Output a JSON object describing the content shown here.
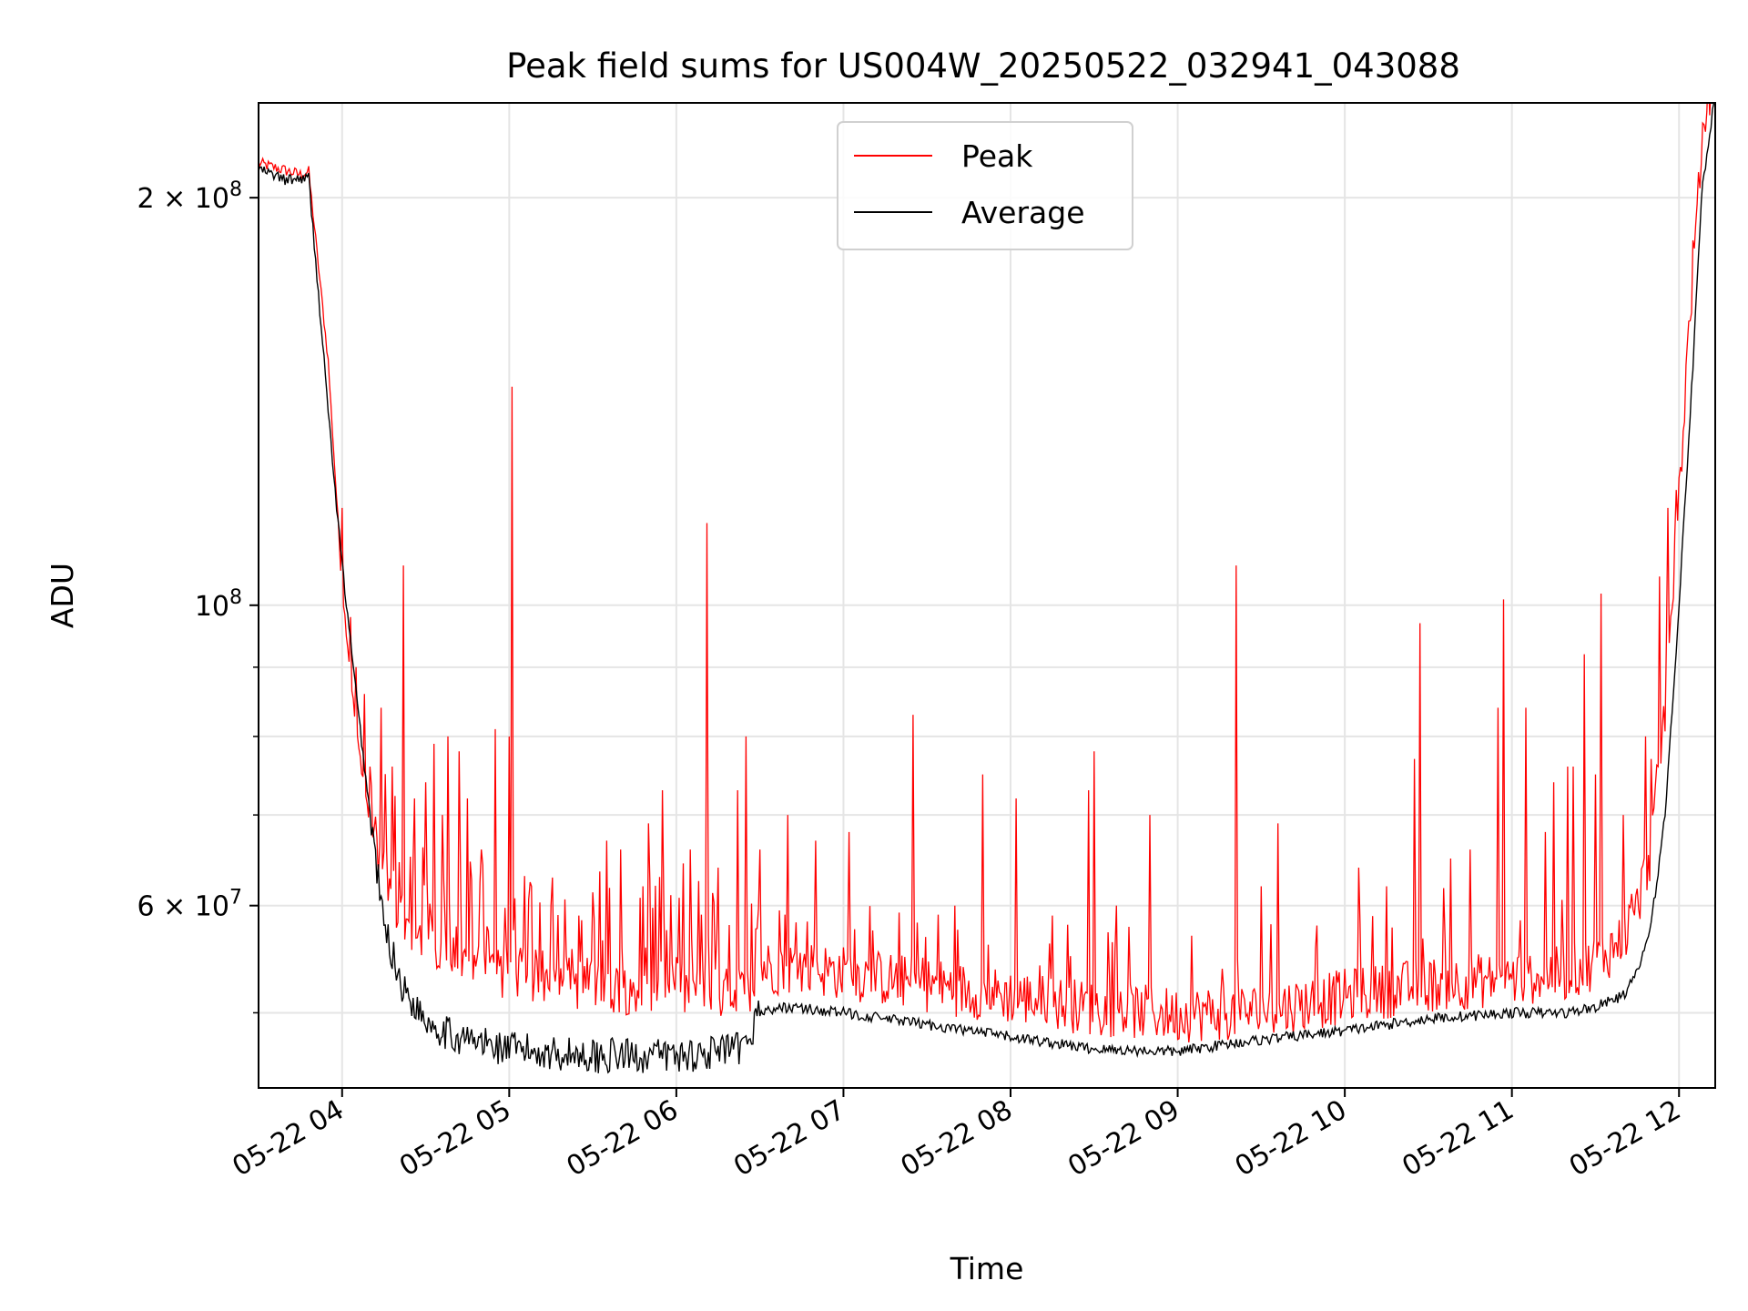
{
  "chart_data": {
    "type": "line",
    "title": "Peak field sums for US004W_20250522_032941_043088",
    "xlabel": "Time",
    "ylabel": "ADU",
    "x_ticks": [
      "05-22 04",
      "05-22 05",
      "05-22 06",
      "05-22 07",
      "05-22 08",
      "05-22 09",
      "05-22 10",
      "05-22 11",
      "05-22 12"
    ],
    "xlim": [
      "2025-05-22 03:30",
      "2025-05-22 12:13"
    ],
    "y_scale": "log",
    "ylim": [
      44000000,
      235000000
    ],
    "y_tick_labels": [
      "2 × 10^8",
      "10^8",
      "6 × 10^7"
    ],
    "y_tick_values": [
      200000000,
      100000000,
      60000000
    ],
    "y_minor_values": [
      50000000,
      70000000,
      80000000,
      90000000
    ],
    "grid": true,
    "legend_position": "top-center",
    "series": [
      {
        "name": "Peak",
        "color": "#ff0000",
        "baseline_x": [
          "03:30",
          "03:45",
          "03:48",
          "03:55",
          "04:00",
          "04:05",
          "04:12",
          "04:20",
          "04:30",
          "04:45",
          "05:00",
          "05:30",
          "06:00",
          "06:25",
          "06:29",
          "06:45",
          "07:00",
          "07:30",
          "08:00",
          "08:30",
          "09:00",
          "09:30",
          "10:00",
          "10:30",
          "11:00",
          "11:20",
          "11:30",
          "11:40",
          "11:45",
          "11:50",
          "11:55",
          "12:00",
          "12:05",
          "12:10",
          "12:13"
        ],
        "baseline_y": [
          210000000,
          206000000,
          207000000,
          150000000,
          102000000,
          80000000,
          64000000,
          56000000,
          53000000,
          51500000,
          51000000,
          50000000,
          49500000,
          49000000,
          51500000,
          51500000,
          51000000,
          50000000,
          49000000,
          48000000,
          47500000,
          47800000,
          49000000,
          50000000,
          50500000,
          51000000,
          52000000,
          54000000,
          57000000,
          63000000,
          80000000,
          115000000,
          170000000,
          225000000,
          240000000
        ],
        "spikes": [
          {
            "x": "03:54",
            "y": 153000000
          },
          {
            "x": "03:55",
            "y": 138000000
          },
          {
            "x": "04:00",
            "y": 118000000
          },
          {
            "x": "04:03",
            "y": 98000000
          },
          {
            "x": "04:05",
            "y": 90000000
          },
          {
            "x": "04:08",
            "y": 86000000
          },
          {
            "x": "04:10",
            "y": 76000000
          },
          {
            "x": "04:14",
            "y": 84000000
          },
          {
            "x": "04:18",
            "y": 76000000
          },
          {
            "x": "04:22",
            "y": 107000000
          },
          {
            "x": "04:26",
            "y": 72000000
          },
          {
            "x": "04:30",
            "y": 74000000
          },
          {
            "x": "04:33",
            "y": 79000000
          },
          {
            "x": "04:36",
            "y": 70000000
          },
          {
            "x": "04:38",
            "y": 80000000
          },
          {
            "x": "04:42",
            "y": 78000000
          },
          {
            "x": "04:45",
            "y": 72000000
          },
          {
            "x": "04:50",
            "y": 66000000
          },
          {
            "x": "04:55",
            "y": 81000000
          },
          {
            "x": "05:00",
            "y": 80000000
          },
          {
            "x": "05:01",
            "y": 145000000
          },
          {
            "x": "05:08",
            "y": 62000000
          },
          {
            "x": "05:15",
            "y": 60000000
          },
          {
            "x": "05:25",
            "y": 59000000
          },
          {
            "x": "05:35",
            "y": 67000000
          },
          {
            "x": "05:40",
            "y": 66000000
          },
          {
            "x": "05:48",
            "y": 62000000
          },
          {
            "x": "05:50",
            "y": 69000000
          },
          {
            "x": "05:55",
            "y": 73000000
          },
          {
            "x": "06:05",
            "y": 66000000
          },
          {
            "x": "06:11",
            "y": 115000000
          },
          {
            "x": "06:15",
            "y": 64000000
          },
          {
            "x": "06:22",
            "y": 73000000
          },
          {
            "x": "06:25",
            "y": 80000000
          },
          {
            "x": "06:30",
            "y": 66000000
          },
          {
            "x": "06:40",
            "y": 70000000
          },
          {
            "x": "06:50",
            "y": 67000000
          },
          {
            "x": "07:02",
            "y": 68000000
          },
          {
            "x": "07:20",
            "y": 58000000
          },
          {
            "x": "07:25",
            "y": 83000000
          },
          {
            "x": "07:40",
            "y": 60000000
          },
          {
            "x": "07:50",
            "y": 56000000
          },
          {
            "x": "07:50",
            "y": 75000000
          },
          {
            "x": "08:02",
            "y": 72000000
          },
          {
            "x": "08:15",
            "y": 59000000
          },
          {
            "x": "08:28",
            "y": 73000000
          },
          {
            "x": "08:30",
            "y": 78000000
          },
          {
            "x": "08:38",
            "y": 60000000
          },
          {
            "x": "08:50",
            "y": 70000000
          },
          {
            "x": "09:05",
            "y": 57000000
          },
          {
            "x": "09:21",
            "y": 107000000
          },
          {
            "x": "09:30",
            "y": 62000000
          },
          {
            "x": "09:36",
            "y": 69000000
          },
          {
            "x": "09:50",
            "y": 58000000
          },
          {
            "x": "10:05",
            "y": 64000000
          },
          {
            "x": "10:15",
            "y": 62000000
          },
          {
            "x": "10:25",
            "y": 77000000
          },
          {
            "x": "10:27",
            "y": 97000000
          },
          {
            "x": "10:38",
            "y": 65000000
          },
          {
            "x": "10:45",
            "y": 66000000
          },
          {
            "x": "10:55",
            "y": 84000000
          },
          {
            "x": "10:57",
            "y": 101000000
          },
          {
            "x": "11:05",
            "y": 84000000
          },
          {
            "x": "11:12",
            "y": 68000000
          },
          {
            "x": "11:15",
            "y": 74000000
          },
          {
            "x": "11:20",
            "y": 76000000
          },
          {
            "x": "11:22",
            "y": 76000000
          },
          {
            "x": "11:26",
            "y": 92000000
          },
          {
            "x": "11:30",
            "y": 75000000
          },
          {
            "x": "11:32",
            "y": 102000000
          },
          {
            "x": "11:40",
            "y": 70000000
          },
          {
            "x": "11:48",
            "y": 80000000
          },
          {
            "x": "11:50",
            "y": 77000000
          },
          {
            "x": "11:53",
            "y": 105000000
          },
          {
            "x": "11:56",
            "y": 118000000
          },
          {
            "x": "12:08",
            "y": 200000000
          }
        ]
      },
      {
        "name": "Average",
        "color": "#000000",
        "x": [
          "03:30",
          "03:40",
          "03:48",
          "03:52",
          "03:58",
          "04:02",
          "04:08",
          "04:15",
          "04:22",
          "04:30",
          "04:40",
          "05:00",
          "05:30",
          "06:00",
          "06:25",
          "06:29",
          "06:40",
          "07:00",
          "07:30",
          "08:00",
          "08:30",
          "09:00",
          "09:20",
          "09:40",
          "10:00",
          "10:30",
          "11:00",
          "11:20",
          "11:30",
          "11:40",
          "11:45",
          "11:50",
          "11:55",
          "12:00",
          "12:05",
          "12:08",
          "12:10",
          "12:13"
        ],
        "y": [
          210000000,
          206000000,
          207000000,
          165000000,
          118000000,
          98000000,
          76000000,
          58000000,
          52000000,
          49500000,
          48000000,
          47000000,
          46500000,
          46500000,
          47000000,
          50000000,
          50500000,
          50000000,
          49000000,
          48000000,
          47000000,
          46800000,
          47500000,
          48000000,
          48500000,
          49500000,
          50000000,
          50000000,
          50500000,
          51500000,
          53500000,
          58000000,
          70000000,
          100000000,
          150000000,
          200000000,
          215000000,
          240000000
        ]
      }
    ]
  }
}
